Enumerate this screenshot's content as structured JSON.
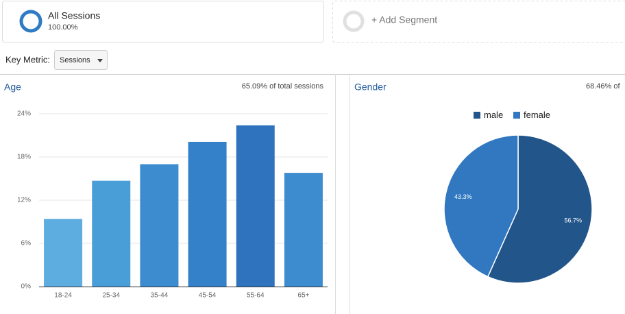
{
  "segments": [
    {
      "name": "All Sessions",
      "value": "100.00%"
    },
    {
      "name": "+ Add Segment"
    }
  ],
  "key_metric": {
    "label": "Key Metric:",
    "selected": "Sessions"
  },
  "chart_data": [
    {
      "type": "bar",
      "title": "Age",
      "subtitle": "65.09% of total sessions",
      "categories": [
        "18-24",
        "25-34",
        "35-44",
        "45-54",
        "55-64",
        "65+"
      ],
      "values": [
        9.4,
        14.7,
        17.0,
        20.1,
        22.4,
        15.8
      ],
      "colors": [
        "#5dade0",
        "#4a9ed8",
        "#3d8ccf",
        "#3480c9",
        "#2f73be",
        "#3d8ccf"
      ],
      "ylim": [
        0,
        24
      ],
      "yticks": [
        {
          "value": 0,
          "label": "0%"
        },
        {
          "value": 6,
          "label": "6%"
        },
        {
          "value": 12,
          "label": "12%"
        },
        {
          "value": 18,
          "label": "18%"
        },
        {
          "value": 24,
          "label": "24%"
        }
      ],
      "grid": true
    },
    {
      "type": "pie",
      "title": "Gender",
      "subtitle": "68.46% of",
      "categories": [
        "male",
        "female"
      ],
      "values": [
        56.7,
        43.3
      ],
      "value_labels": [
        "56.7%",
        "43.3%"
      ],
      "colors": [
        "#22558a",
        "#3178c0"
      ],
      "legend": "top"
    }
  ]
}
